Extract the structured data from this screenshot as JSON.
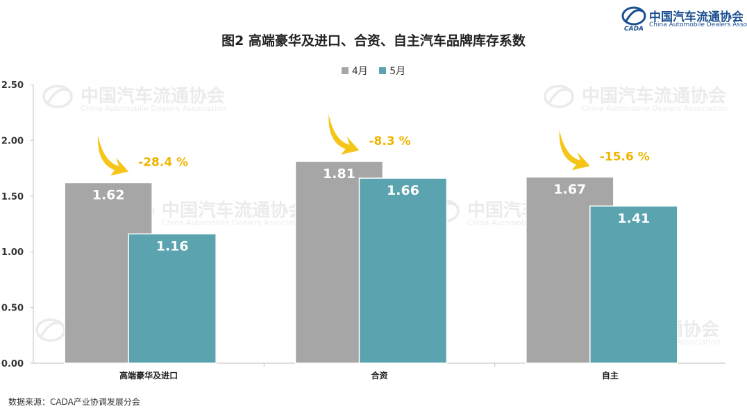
{
  "logo": {
    "cn": "中国汽车流通协会",
    "en": "China Automobile Dealers Association",
    "icon": "cada-logo-icon"
  },
  "watermark": {
    "cn": "中国汽车流通协会",
    "en": "China Automobile Dealers Association"
  },
  "source": "数据来源：CADA产业协调发展分会",
  "colors": {
    "april": "#a6a6a6",
    "may": "#5ba3ae",
    "arrow": "#f5c518",
    "change": "#f0b400"
  },
  "chart_data": {
    "type": "bar",
    "title": "图2  高端豪华及进口、合资、自主汽车品牌库存系数",
    "xlabel": "",
    "ylabel": "",
    "categories": [
      "高端豪华及进口",
      "合资",
      "自主"
    ],
    "series": [
      {
        "name": "4月",
        "values": [
          1.62,
          1.81,
          1.67
        ]
      },
      {
        "name": "5月",
        "values": [
          1.16,
          1.66,
          1.41
        ]
      }
    ],
    "value_labels": [
      [
        "1.62",
        "1.81",
        "1.67"
      ],
      [
        "1.16",
        "1.66",
        "1.41"
      ]
    ],
    "changes": [
      "-28.4 %",
      "-8.3 %",
      "-15.6 %"
    ],
    "ylim": [
      0,
      2.5
    ],
    "yticks": [
      "0.00",
      "0.50",
      "1.00",
      "1.50",
      "2.00",
      "2.50"
    ],
    "grid": false,
    "legend": "top-center"
  }
}
